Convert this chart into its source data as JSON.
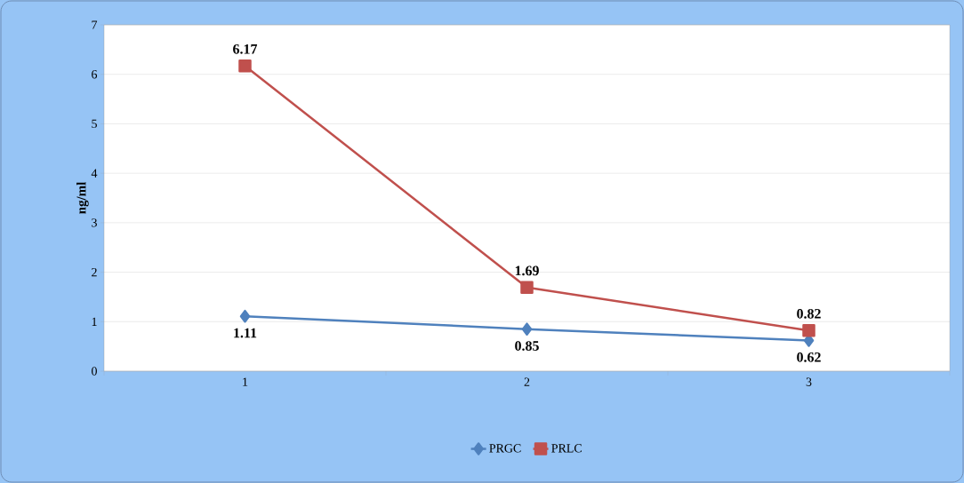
{
  "chart_data": {
    "type": "line",
    "categories": [
      "1",
      "2",
      "3"
    ],
    "series": [
      {
        "name": "PRGC",
        "color": "#4f81bd",
        "marker": "diamond",
        "values": [
          1.11,
          0.85,
          0.62
        ]
      },
      {
        "name": "PRLC",
        "color": "#c0504d",
        "marker": "square",
        "values": [
          6.17,
          1.69,
          0.82
        ]
      }
    ],
    "ylabel": "ng/ml",
    "ylim": [
      0,
      7
    ],
    "yticks": [
      0,
      1,
      2,
      3,
      4,
      5,
      6,
      7
    ],
    "grid": "y",
    "legend": "bottom",
    "data_labels": true,
    "line_style": "solid"
  }
}
